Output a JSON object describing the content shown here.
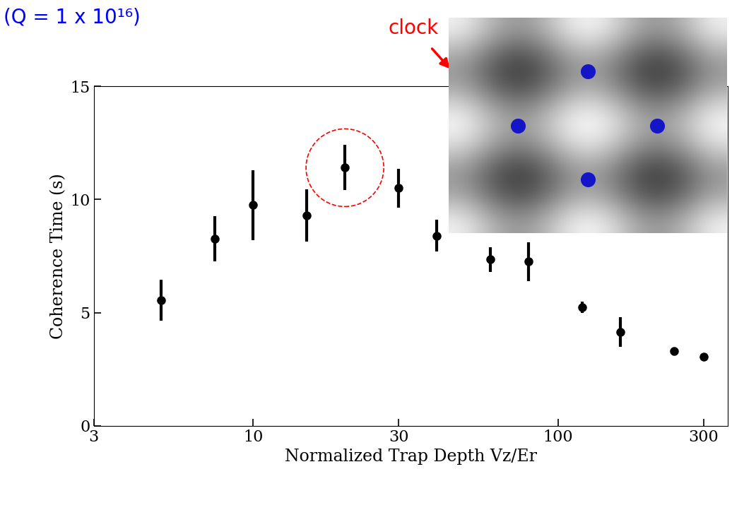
{
  "chart_data": {
    "type": "scatter",
    "x_label": "Normalized Trap Depth Vz/Er",
    "y_label": "Coherence Time (s)",
    "x": [
      5,
      7.5,
      10,
      15,
      20,
      30,
      40,
      60,
      80,
      120,
      160,
      240,
      300
    ],
    "values": [
      5.55,
      8.25,
      9.75,
      9.3,
      11.4,
      10.5,
      8.4,
      7.35,
      7.25,
      5.25,
      4.15,
      3.3,
      3.05
    ],
    "errors": [
      0.9,
      1.0,
      1.55,
      1.15,
      1.0,
      0.85,
      0.7,
      0.55,
      0.85,
      0.25,
      0.65,
      0.15,
      0.15
    ],
    "color": "#000000",
    "marker": "o",
    "log": "x",
    "xlim": [
      3,
      360
    ],
    "xticks": [
      3,
      10,
      30,
      100,
      300
    ],
    "ylim": [
      0,
      15
    ],
    "yticks": [
      0,
      5,
      10,
      15
    ],
    "grid": false,
    "annotations": [
      {
        "text": "(Q = 1 x 10¹⁶)",
        "color": "#0000ff"
      },
      {
        "text": "clock",
        "color": "#ff0000"
      }
    ]
  }
}
